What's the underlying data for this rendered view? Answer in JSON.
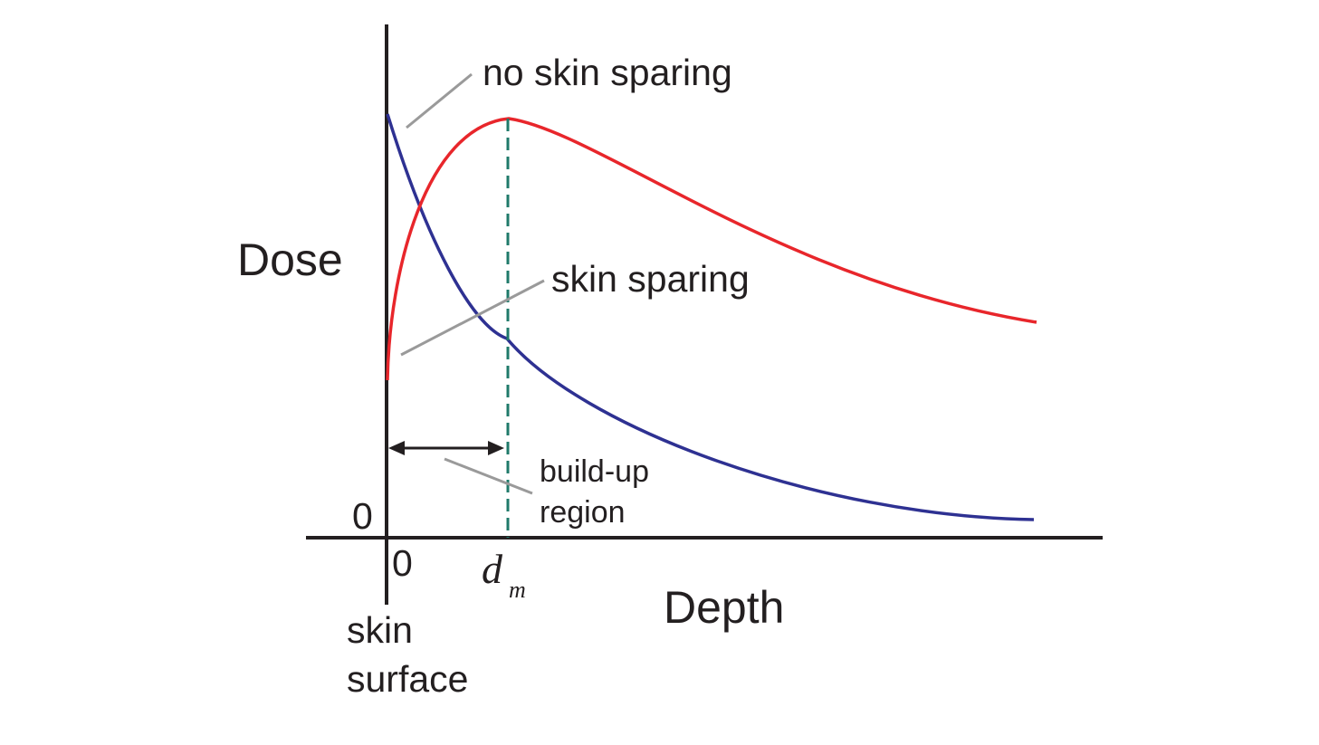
{
  "labels": {
    "y_axis": "Dose",
    "x_axis": "Depth",
    "y_zero": "0",
    "x_zero": "0",
    "dm_main": "d",
    "dm_sub": "m",
    "no_skin_sparing": "no skin sparing",
    "skin_sparing": "skin sparing",
    "buildup_line1": "build-up",
    "buildup_line2": "region",
    "skin_line1": "skin",
    "skin_line2": "surface"
  },
  "colors": {
    "axis": "#231f20",
    "no_sparing_curve": "#2e3192",
    "sparing_curve": "#e8262b",
    "dm_marker": "#1f7a6a",
    "leader": "#9a9a9a"
  }
}
